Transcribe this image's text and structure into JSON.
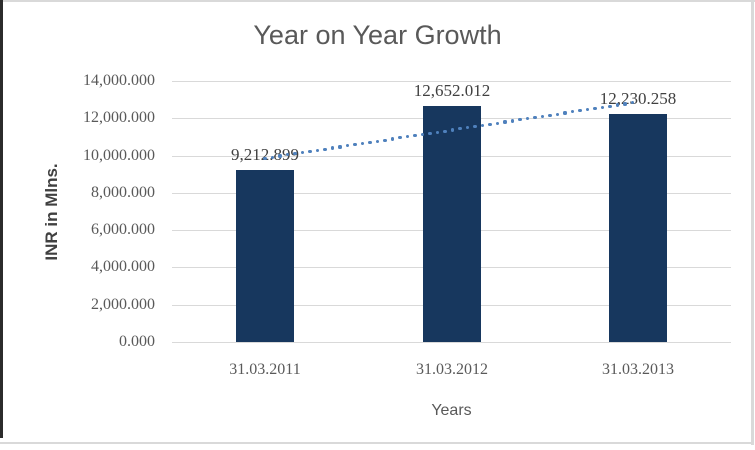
{
  "frame": {
    "border_color": "#d9d9d9",
    "left_edge_color": "#2b2b2b",
    "background": "#ffffff"
  },
  "chart_data": {
    "type": "bar",
    "title": "Year on Year Growth",
    "xlabel": "Years",
    "ylabel": "INR in Mlns.",
    "categories": [
      "31.03.2011",
      "31.03.2012",
      "31.03.2013"
    ],
    "values": [
      9212.899,
      12652.012,
      12230.258
    ],
    "data_labels": [
      "9,212.899",
      "12,652.012",
      "12,230.258"
    ],
    "ylim": [
      0,
      14000
    ],
    "ytick_step": 2000,
    "ytick_labels": [
      "0.000",
      "2,000.000",
      "4,000.000",
      "6,000.000",
      "8,000.000",
      "10,000.000",
      "12,000.000",
      "14,000.000"
    ],
    "grid": true,
    "legend_position": "none",
    "trendline": {
      "kind": "linear",
      "line_style": "dotted",
      "color": "#4f81bd"
    },
    "colors": {
      "bar": "#17375e",
      "gridline": "#d9d9d9",
      "axis_text": "#595959",
      "title_text": "#595959",
      "data_label_text": "#404040",
      "y_axis_title_text": "#404040"
    }
  }
}
